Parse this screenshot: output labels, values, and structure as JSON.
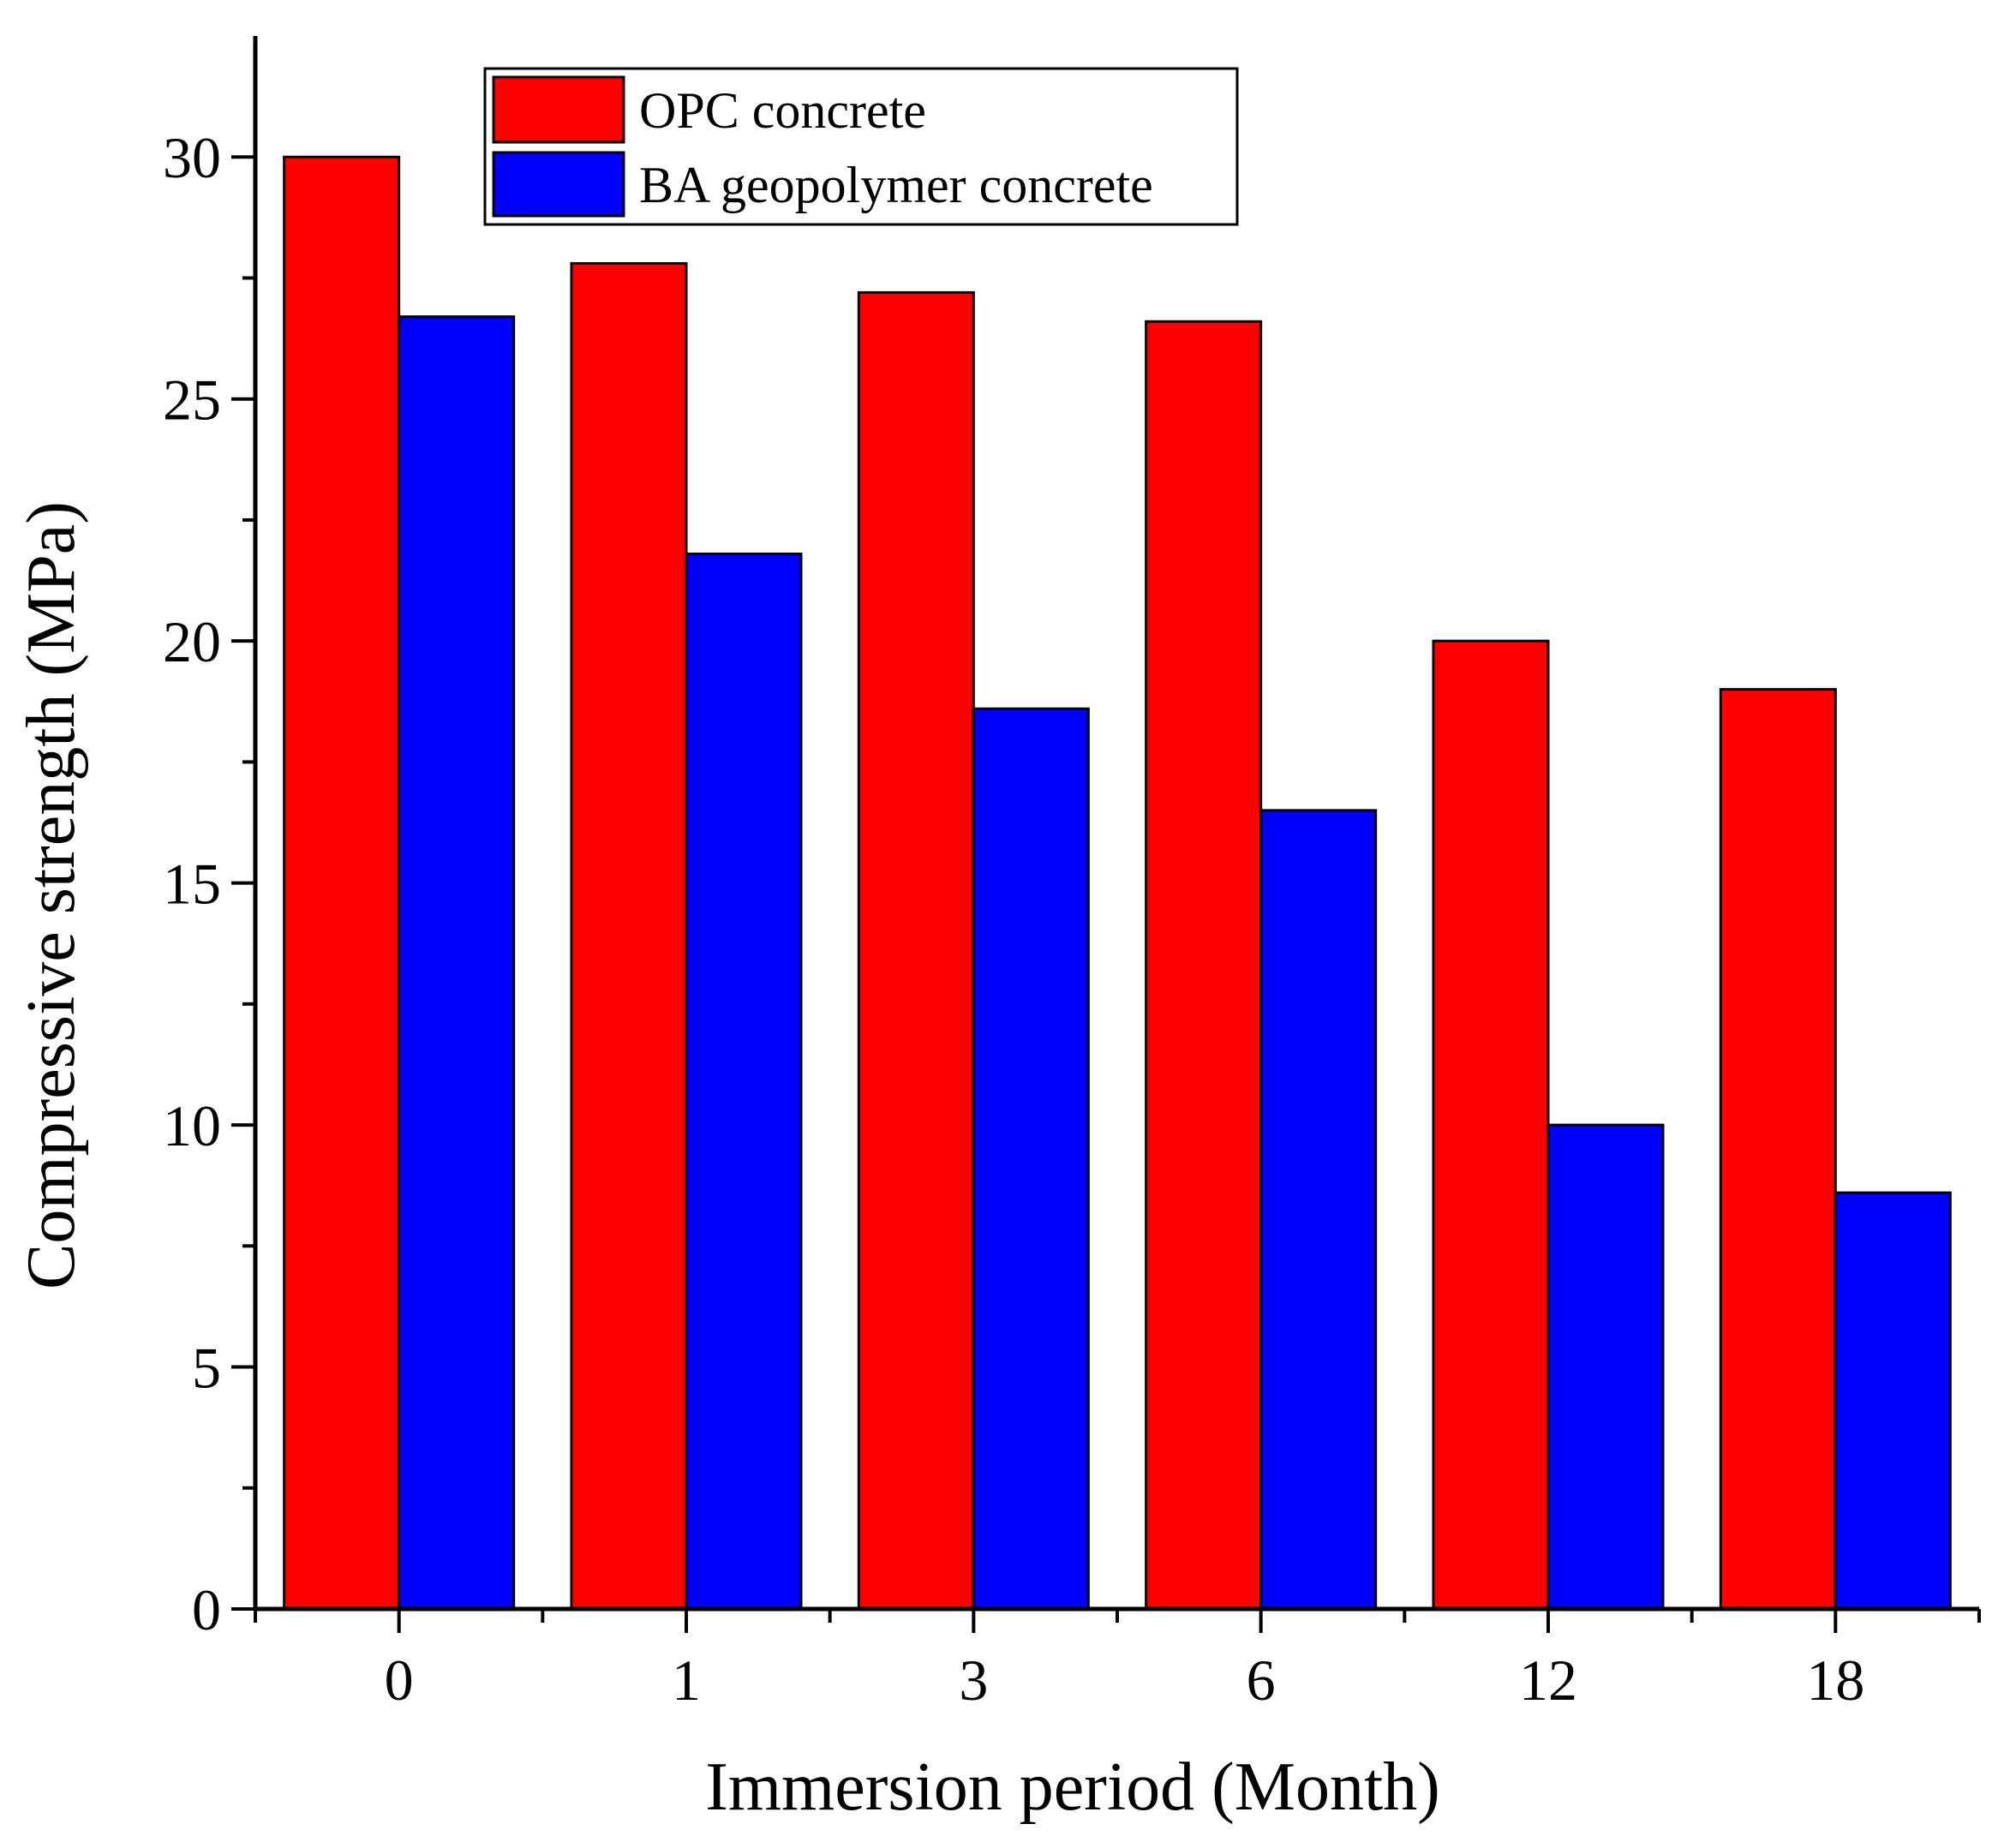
{
  "chart_data": {
    "type": "bar",
    "title": "",
    "xlabel": "Immersion period (Month)",
    "ylabel": "Compressive strength (MPa)",
    "categories": [
      "0",
      "1",
      "3",
      "6",
      "12",
      "18"
    ],
    "series": [
      {
        "name": "OPC concrete",
        "color": "#ff0000",
        "values": [
          30.0,
          27.8,
          27.2,
          26.6,
          20.0,
          19.0
        ]
      },
      {
        "name": "BA geopolymer concrete",
        "color": "#0000ff",
        "values": [
          26.7,
          21.8,
          18.6,
          16.5,
          10.0,
          8.6
        ]
      }
    ],
    "ylim": [
      0,
      32.5
    ],
    "yticks": [
      0,
      5,
      10,
      15,
      20,
      25,
      30
    ],
    "grid": false,
    "legend_position": "top-left"
  }
}
